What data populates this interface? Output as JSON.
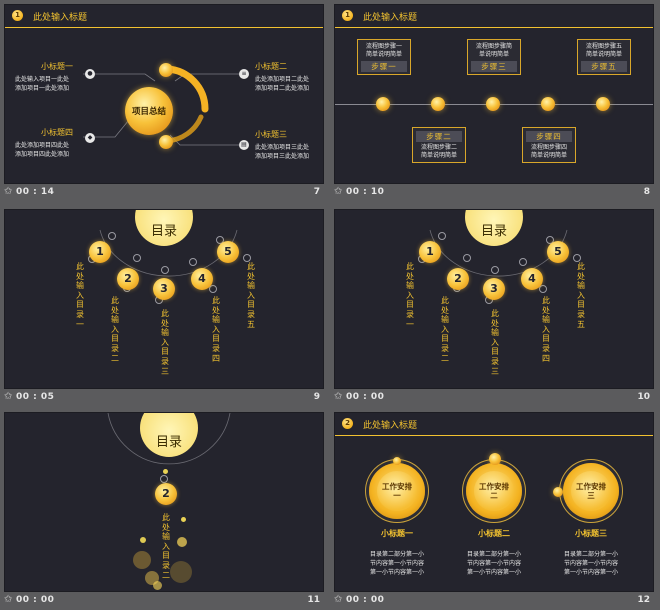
{
  "slide7": {
    "header_num": "1",
    "header_title": "此处输入标题",
    "center": "项目总结",
    "tl_title": "小标题一",
    "tl_desc": [
      "此处输入项目一此处",
      "添加项目一此处添加"
    ],
    "tr_title": "小标题二",
    "tr_desc": [
      "此处添加项目二此处",
      "添加项目二此处添加"
    ],
    "bl_title": "小标题四",
    "bl_desc": [
      "此处添加项目四此处",
      "添加项目四此处添加"
    ],
    "br_title": "小标题三",
    "br_desc": [
      "此处添加项目三此处",
      "添加项目三此处添加"
    ],
    "caption_time": "00 : 14",
    "caption_num": "7"
  },
  "slide8": {
    "header_num": "1",
    "header_title": "此处输入标题",
    "top_steps": [
      {
        "desc1": "流程图步骤一",
        "desc2": "简单说明简单",
        "label": "步骤一"
      },
      {
        "desc1": "流程图步骤简",
        "desc2": "单说明简单",
        "label": "步骤三"
      },
      {
        "desc1": "流程图步骤五",
        "desc2": "简单说明简单",
        "label": "步骤五"
      }
    ],
    "bottom_steps": [
      {
        "label": "步骤二",
        "desc1": "流程图步骤二",
        "desc2": "简单说明简单"
      },
      {
        "label": "步骤四",
        "desc1": "流程图步骤四",
        "desc2": "简单说明简单"
      }
    ],
    "caption_time": "00 : 10",
    "caption_num": "8"
  },
  "slide9": {
    "title": "目录",
    "items": [
      {
        "num": "1",
        "text": "此处输入目录一"
      },
      {
        "num": "2",
        "text": "此处输入目录二"
      },
      {
        "num": "3",
        "text": "此处输入目录三"
      },
      {
        "num": "4",
        "text": "此处输入目录四"
      },
      {
        "num": "5",
        "text": "此处输入目录五"
      }
    ],
    "caption_time": "00 : 05",
    "caption_num": "9"
  },
  "slide10": {
    "title": "目录",
    "items": [
      {
        "num": "1",
        "text": "此处输入目录一"
      },
      {
        "num": "2",
        "text": "此处输入目录二"
      },
      {
        "num": "3",
        "text": "此处输入目录三"
      },
      {
        "num": "4",
        "text": "此处输入目录四"
      },
      {
        "num": "5",
        "text": "此处输入目录五"
      }
    ],
    "caption_time": "00 : 00",
    "caption_num": "10"
  },
  "slide11": {
    "title": "目录",
    "num": "2",
    "text": "此处输入目录二",
    "caption_time": "00 : 00",
    "caption_num": "11"
  },
  "slide12": {
    "header_num": "2",
    "header_title": "此处输入标题",
    "cards": [
      {
        "medal_l1": "工作安排",
        "medal_l2": "一",
        "title": "小标题一",
        "desc": [
          "目录第二部分第一小",
          "节内容第一小节内容",
          "第一小节内容第一小"
        ]
      },
      {
        "medal_l1": "工作安排",
        "medal_l2": "二",
        "title": "小标题二",
        "desc": [
          "目录第二部分第一小",
          "节内容第一小节内容",
          "第一小节内容第一小"
        ]
      },
      {
        "medal_l1": "工作安排",
        "medal_l2": "三",
        "title": "小标题三",
        "desc": [
          "目录第二部分第一小",
          "节内容第一小节内容",
          "第一小节内容第一小"
        ]
      }
    ],
    "caption_time": "00 : 00",
    "caption_num": "12"
  },
  "colors": {
    "accent": "#f2c230",
    "slide_bg": "#24242d",
    "page_bg": "#5b5b5d"
  },
  "icons": {
    "caption": "star-icon",
    "s7_tl": "user-icon",
    "s7_tr": "stack-icon",
    "s7_bl": "shield-icon",
    "s7_br": "document-icon"
  }
}
